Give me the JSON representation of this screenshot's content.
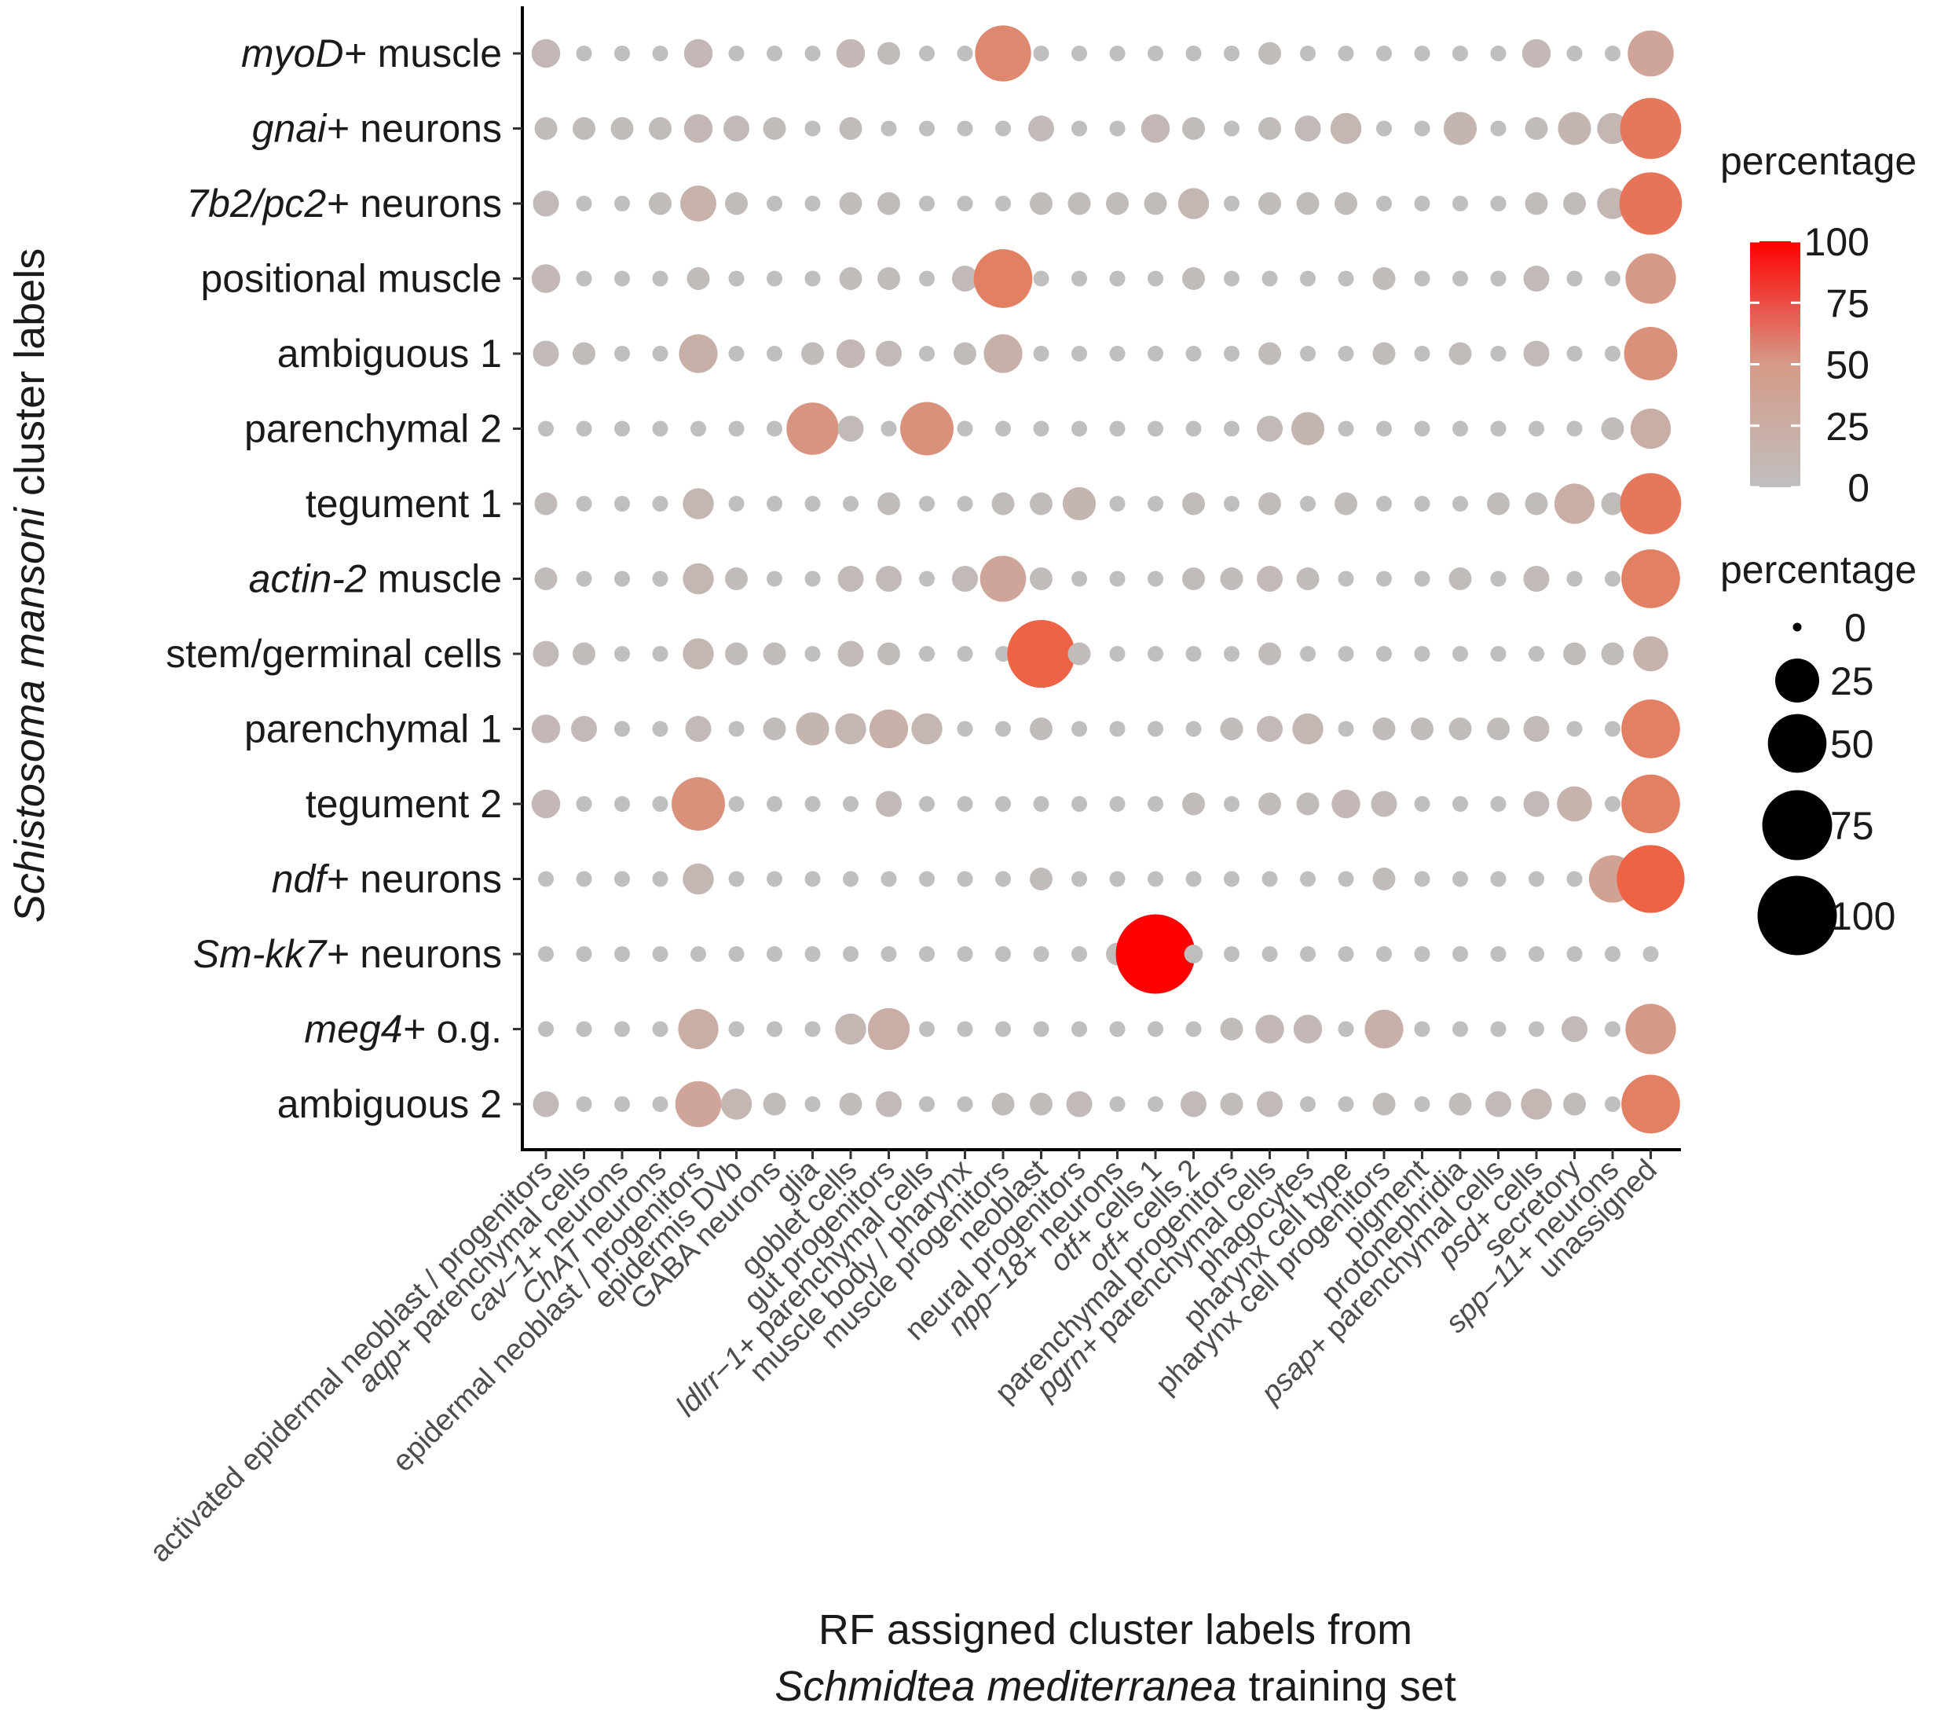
{
  "chart_data": {
    "type": "dotplot",
    "xlabel_line1": "RF assigned cluster labels from",
    "xlabel_line2_italic": "Schmidtea mediterranea",
    "xlabel_line2_rest": " training set",
    "ylabel_italic": "Schistosoma mansoni",
    "ylabel_rest": " cluster labels",
    "x_categories": [
      {
        "label": "activated epidermal neoblast / progenitors"
      },
      {
        "label": "aqp+ parenchymal cells",
        "italic": "aqp+",
        "rest": " parenchymal cells"
      },
      {
        "label": "cav−1+ neurons",
        "italic": "cav−1+",
        "rest": " neurons"
      },
      {
        "label": "ChAT neurons",
        "italic": "ChAT",
        "rest": " neurons"
      },
      {
        "label": "epidermal neoblast / progenitors"
      },
      {
        "label": "epidermis DVb"
      },
      {
        "label": "GABA neurons"
      },
      {
        "label": "glia"
      },
      {
        "label": "goblet cells"
      },
      {
        "label": "gut progenitors"
      },
      {
        "label": "ldlrr−1+ parenchymal cells",
        "italic": "ldlrr−1+",
        "rest": " parenchymal cells"
      },
      {
        "label": "muscle body / pharynx"
      },
      {
        "label": "muscle progenitors"
      },
      {
        "label": "neoblast"
      },
      {
        "label": "neural progenitors"
      },
      {
        "label": "npp−18+ neurons",
        "italic": "npp−18+",
        "rest": " neurons"
      },
      {
        "label": "otf+ cells 1",
        "italic": "otf+",
        "rest": " cells 1"
      },
      {
        "label": "otf+ cells 2",
        "italic": "otf+",
        "rest": " cells 2"
      },
      {
        "label": "parenchymal progenitors"
      },
      {
        "label": "pgrn+ parenchymal cells",
        "italic": "pgrn+",
        "rest": " parenchymal cells"
      },
      {
        "label": "phagocytes"
      },
      {
        "label": "pharynx cell type"
      },
      {
        "label": "pharynx cell progenitors"
      },
      {
        "label": "pigment"
      },
      {
        "label": "protonephridia"
      },
      {
        "label": "psap+ parenchymal cells",
        "italic": "psap+",
        "rest": " parenchymal cells"
      },
      {
        "label": "psd+ cells",
        "italic": "psd+",
        "rest": " cells"
      },
      {
        "label": "secretory"
      },
      {
        "label": "spp−11+ neurons",
        "italic": "spp−11+",
        "rest": " neurons"
      },
      {
        "label": "unassigned"
      }
    ],
    "y_categories": [
      {
        "label": "myoD+ muscle",
        "italic": "myoD+",
        "rest": " muscle"
      },
      {
        "label": "gnai+ neurons",
        "italic": "gnai+",
        "rest": " neurons"
      },
      {
        "label": "7b2/pc2+ neurons",
        "italic": "7b2/pc2+",
        "rest": " neurons"
      },
      {
        "label": "positional muscle"
      },
      {
        "label": "ambiguous 1"
      },
      {
        "label": "parenchymal 2"
      },
      {
        "label": "tegument 1"
      },
      {
        "label": "actin-2 muscle",
        "italic": "actin-2",
        "rest": " muscle"
      },
      {
        "label": "stem/germinal cells"
      },
      {
        "label": "parenchymal 1"
      },
      {
        "label": "tegument 2"
      },
      {
        "label": "ndf+ neurons",
        "italic": "ndf+",
        "rest": " neurons"
      },
      {
        "label": "Sm-kk7+ neurons",
        "italic": "Sm-kk7+",
        "rest": " neurons"
      },
      {
        "label": "meg4+ o.g.",
        "italic": "meg4+",
        "rest": " o.g."
      },
      {
        "label": "ambiguous 2"
      }
    ],
    "values": [
      [
        8,
        1,
        1,
        1,
        8,
        1,
        1,
        1,
        8,
        4,
        1,
        1,
        45,
        1,
        1,
        1,
        1,
        1,
        1,
        4,
        1,
        1,
        1,
        1,
        1,
        1,
        8,
        1,
        1,
        28
      ],
      [
        4,
        4,
        4,
        4,
        8,
        6,
        4,
        1,
        4,
        1,
        1,
        1,
        1,
        6,
        1,
        1,
        8,
        4,
        1,
        4,
        6,
        10,
        1,
        1,
        12,
        1,
        4,
        12,
        10,
        55
      ],
      [
        6,
        1,
        1,
        4,
        15,
        4,
        1,
        1,
        4,
        4,
        1,
        1,
        1,
        4,
        4,
        4,
        4,
        10,
        1,
        4,
        4,
        4,
        1,
        1,
        1,
        1,
        4,
        4,
        10,
        58
      ],
      [
        8,
        1,
        1,
        1,
        4,
        1,
        1,
        1,
        4,
        4,
        1,
        6,
        50,
        1,
        1,
        1,
        1,
        4,
        1,
        1,
        1,
        1,
        4,
        1,
        1,
        1,
        6,
        1,
        1,
        35
      ],
      [
        6,
        4,
        1,
        1,
        18,
        1,
        1,
        4,
        8,
        6,
        1,
        4,
        18,
        1,
        1,
        1,
        1,
        1,
        1,
        4,
        1,
        1,
        4,
        1,
        4,
        1,
        6,
        1,
        1,
        40
      ],
      [
        1,
        1,
        1,
        1,
        1,
        1,
        1,
        38,
        6,
        1,
        40,
        1,
        1,
        1,
        1,
        1,
        1,
        1,
        1,
        6,
        12,
        1,
        1,
        1,
        1,
        1,
        1,
        1,
        4,
        20
      ],
      [
        4,
        1,
        1,
        1,
        10,
        1,
        1,
        1,
        1,
        4,
        1,
        1,
        4,
        4,
        12,
        1,
        1,
        4,
        1,
        4,
        1,
        4,
        1,
        1,
        1,
        4,
        4,
        20,
        4,
        55
      ],
      [
        4,
        1,
        1,
        1,
        10,
        4,
        1,
        1,
        6,
        6,
        1,
        6,
        28,
        4,
        1,
        1,
        1,
        4,
        4,
        6,
        4,
        1,
        1,
        1,
        4,
        1,
        6,
        1,
        1,
        50
      ],
      [
        6,
        4,
        1,
        1,
        10,
        4,
        4,
        1,
        6,
        4,
        1,
        1,
        1,
        70,
        4,
        1,
        1,
        1,
        1,
        4,
        1,
        1,
        1,
        1,
        1,
        1,
        1,
        4,
        4,
        14
      ],
      [
        8,
        6,
        1,
        1,
        6,
        1,
        4,
        12,
        10,
        18,
        10,
        1,
        1,
        4,
        1,
        1,
        1,
        1,
        4,
        6,
        10,
        1,
        4,
        4,
        4,
        4,
        6,
        1,
        1,
        50
      ],
      [
        8,
        1,
        1,
        1,
        40,
        1,
        1,
        1,
        1,
        6,
        1,
        1,
        1,
        1,
        1,
        1,
        1,
        4,
        1,
        4,
        4,
        8,
        6,
        1,
        1,
        1,
        6,
        14,
        1,
        50
      ],
      [
        1,
        1,
        1,
        1,
        10,
        1,
        1,
        1,
        1,
        1,
        1,
        1,
        1,
        4,
        1,
        1,
        1,
        1,
        1,
        1,
        1,
        1,
        4,
        1,
        1,
        1,
        1,
        1,
        30,
        70
      ],
      [
        1,
        1,
        1,
        1,
        1,
        1,
        1,
        1,
        1,
        1,
        1,
        1,
        1,
        1,
        1,
        4,
        100,
        2,
        1,
        1,
        1,
        1,
        1,
        1,
        1,
        1,
        1,
        1,
        1,
        1
      ],
      [
        1,
        1,
        1,
        1,
        20,
        1,
        1,
        1,
        10,
        22,
        1,
        1,
        1,
        1,
        1,
        1,
        1,
        1,
        4,
        8,
        8,
        1,
        18,
        1,
        1,
        1,
        1,
        6,
        1,
        35
      ],
      [
        6,
        1,
        1,
        1,
        28,
        10,
        4,
        1,
        4,
        6,
        1,
        1,
        4,
        4,
        6,
        1,
        1,
        6,
        4,
        6,
        1,
        1,
        4,
        1,
        4,
        6,
        10,
        4,
        1,
        50
      ]
    ],
    "value_units": "percentage",
    "color_legend": {
      "title": "percentage",
      "ticks": [
        100,
        75,
        50,
        25,
        0
      ],
      "low_color": "#bfbfbf",
      "high_color": "#ff0000"
    },
    "size_legend": {
      "title": "percentage",
      "ticks": [
        0,
        25,
        50,
        75,
        100
      ]
    }
  }
}
